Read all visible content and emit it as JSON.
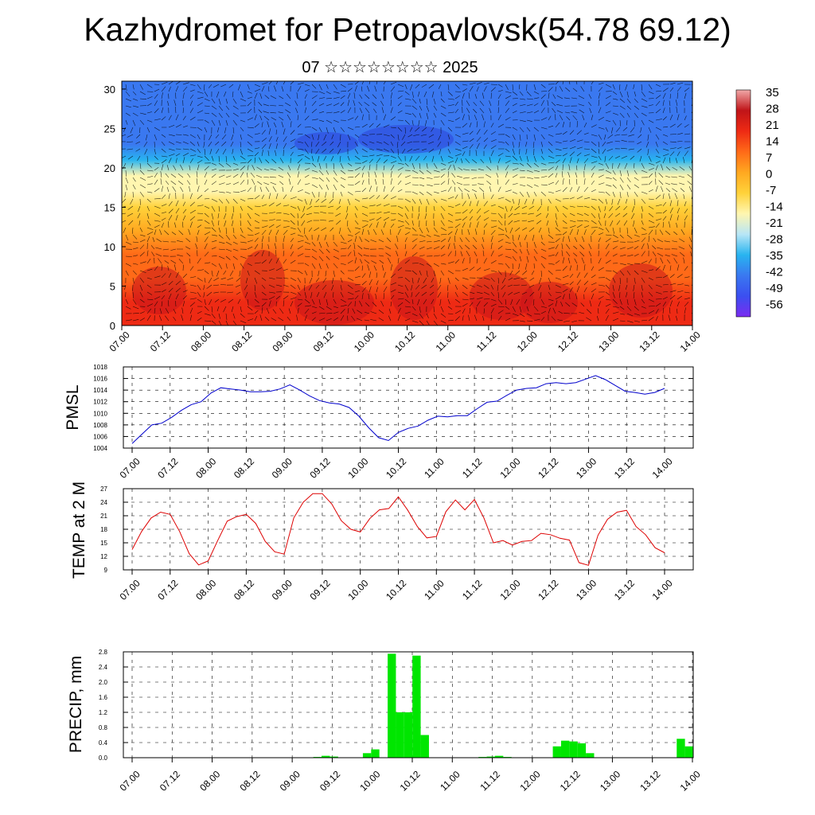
{
  "header": {
    "title": "Kazhydromet for Petropavlovsk(54.78 69.12)",
    "subtitle": "07 ☆☆☆☆☆☆☆☆ 2025"
  },
  "time_labels": [
    "07.00",
    "07.12",
    "08.00",
    "08.12",
    "09.00",
    "09.12",
    "10.00",
    "10.12",
    "11.00",
    "11.12",
    "12.00",
    "12.12",
    "13.00",
    "13.12",
    "14.00"
  ],
  "chart_data": [
    {
      "type": "heatmap",
      "title": "",
      "xlabel": "",
      "ylabel": "",
      "x_ticks": [
        "07.00",
        "07.12",
        "08.00",
        "08.12",
        "09.00",
        "09.12",
        "10.00",
        "10.12",
        "11.00",
        "11.12",
        "12.00",
        "12.12",
        "13.00",
        "13.12",
        "14.00"
      ],
      "ylim": [
        0,
        31
      ],
      "y_ticks": [
        0,
        5,
        10,
        15,
        20,
        25,
        30
      ],
      "colorbar_ticks": [
        35,
        28,
        21,
        14,
        7,
        0,
        -7,
        -14,
        -21,
        -28,
        -35,
        -42,
        -49,
        -56
      ],
      "colorscale": [
        "#7a2cf0",
        "#3b4ff0",
        "#3a78f0",
        "#28b4f0",
        "#b8e6f6",
        "#fff6b0",
        "#ffd23a",
        "#ffa820",
        "#ff6a18",
        "#ee2a14",
        "#c01418",
        "#f0a8a8"
      ],
      "wind_vectors": true,
      "temperature_profile": {
        "levels": [
          0,
          3,
          6,
          9,
          12,
          15,
          17,
          19,
          21,
          23,
          25,
          27,
          29,
          31
        ],
        "values": [
          22,
          20,
          16,
          11,
          6,
          -3,
          -12,
          -20,
          -30,
          -40,
          -48,
          -46,
          -44,
          -42
        ]
      }
    },
    {
      "type": "line",
      "ylabel": "PMSL",
      "ylim": [
        1004,
        1018
      ],
      "y_ticks": [
        1004,
        1006,
        1008,
        1010,
        1012,
        1014,
        1016,
        1018
      ],
      "color": "#0000cc",
      "series": [
        {
          "values": [
            1004.8,
            1006.4,
            1008.0,
            1008.3,
            1009.3,
            1010.5,
            1011.5,
            1012.0,
            1013.5,
            1014.4,
            1014.2,
            1014.0,
            1013.7,
            1013.7,
            1013.8,
            1014.2,
            1014.9,
            1014.0,
            1013.0,
            1012.2,
            1011.8,
            1011.6,
            1011.0,
            1009.5,
            1007.5,
            1005.8,
            1005.3,
            1006.7,
            1007.4,
            1007.8,
            1008.8,
            1009.5,
            1009.4,
            1009.6,
            1009.6,
            1010.8,
            1011.9,
            1012.1,
            1013.1,
            1014.0,
            1014.3,
            1014.4,
            1015.1,
            1015.3,
            1015.1,
            1015.3,
            1015.9,
            1016.5,
            1015.8,
            1014.8,
            1013.8,
            1013.6,
            1013.3,
            1013.6,
            1014.3
          ]
        }
      ]
    },
    {
      "type": "line",
      "ylabel": "TEMP at 2 M",
      "ylim": [
        9,
        27
      ],
      "y_ticks": [
        9,
        12,
        15,
        18,
        21,
        24,
        27
      ],
      "color": "#dd0000",
      "series": [
        {
          "values": [
            13.5,
            17.5,
            20.5,
            21.8,
            21.3,
            17.5,
            12.6,
            10.1,
            11.0,
            15.5,
            19.8,
            20.8,
            21.3,
            19.3,
            15.3,
            13.0,
            12.5,
            20.5,
            24.0,
            25.9,
            25.9,
            23.6,
            19.9,
            18.0,
            17.4,
            20.4,
            22.3,
            22.6,
            25.2,
            22.2,
            18.6,
            16.1,
            16.4,
            21.9,
            24.5,
            22.3,
            24.6,
            20.5,
            15.0,
            15.5,
            14.5,
            15.3,
            15.5,
            17.1,
            16.8,
            16.0,
            15.6,
            10.6,
            10.0,
            16.7,
            20.2,
            21.8,
            22.2,
            18.6,
            16.8,
            13.9,
            12.8
          ]
        }
      ]
    },
    {
      "type": "bar",
      "ylabel": "PRECIP, mm",
      "ylim": [
        0,
        2.8
      ],
      "y_ticks": [
        0.0,
        0.4,
        0.8,
        1.2,
        1.6,
        2.0,
        2.4,
        2.8
      ],
      "color": "#00e600",
      "values": [
        0,
        0,
        0,
        0,
        0,
        0,
        0,
        0,
        0,
        0,
        0,
        0,
        0.01,
        0,
        0,
        0,
        0,
        0,
        0,
        0,
        0,
        0,
        0,
        0.02,
        0.05,
        0.03,
        0,
        0,
        0,
        0.12,
        0.22,
        0,
        2.75,
        1.2,
        1.2,
        2.7,
        0.6,
        0,
        0,
        0,
        0,
        0,
        0,
        0.02,
        0.03,
        0.05,
        0.02,
        0,
        0,
        0,
        0,
        0,
        0.3,
        0.45,
        0.43,
        0.38,
        0.12,
        0,
        0,
        0,
        0,
        0,
        0,
        0,
        0,
        0,
        0,
        0.5,
        0.3
      ]
    }
  ]
}
